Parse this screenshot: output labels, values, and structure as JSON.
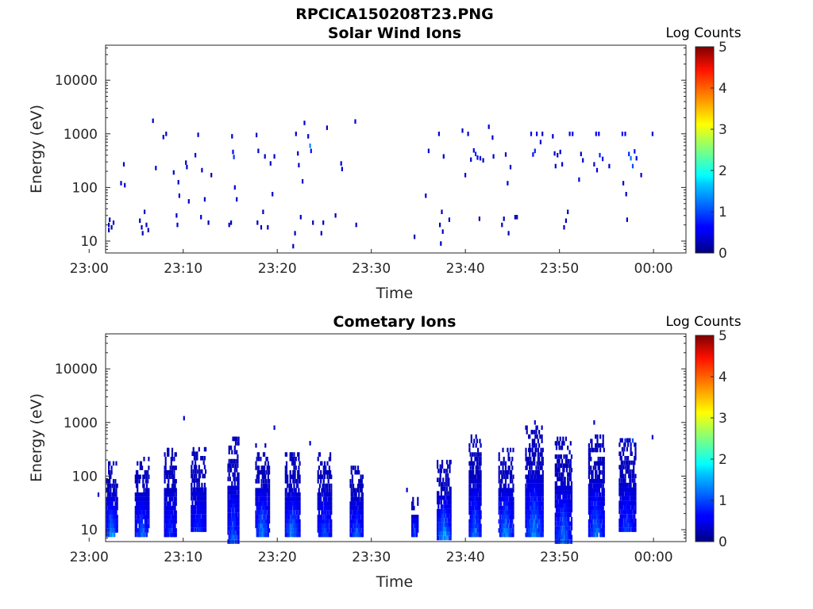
{
  "figure": {
    "title": "RPCICA150208T23.PNG"
  },
  "chart_data": [
    {
      "type": "heatmap",
      "title": "Solar Wind Ions",
      "xlabel": "Time",
      "ylabel": "Energy (eV)",
      "x_ticks": [
        "23:00",
        "23:10",
        "23:20",
        "23:30",
        "23:40",
        "23:50",
        "00:00"
      ],
      "y_ticks": [
        "10",
        "100",
        "1000",
        "10000"
      ],
      "y_scale": "log",
      "ylim": [
        6,
        45000
      ],
      "colorbar": {
        "label": "Log Counts",
        "range": [
          0,
          5
        ],
        "ticks": [
          "0",
          "1",
          "2",
          "3",
          "4",
          "5"
        ],
        "colormap": "jet"
      },
      "cells_unit": "[minutes after 23:00, energy eV, log counts]",
      "cells": [
        [
          2.0,
          20,
          0.3
        ],
        [
          2.0,
          16,
          0.3
        ],
        [
          2.1,
          25,
          0.3
        ],
        [
          2.3,
          18,
          0.3
        ],
        [
          2.5,
          22,
          0.3
        ],
        [
          3.3,
          120,
          0.4
        ],
        [
          3.6,
          270,
          0.4
        ],
        [
          3.7,
          110,
          0.4
        ],
        [
          5.3,
          24,
          0.3
        ],
        [
          5.5,
          18,
          0.3
        ],
        [
          5.6,
          14,
          0.3
        ],
        [
          5.8,
          35,
          0.3
        ],
        [
          6.0,
          20,
          0.3
        ],
        [
          6.2,
          16,
          0.3
        ],
        [
          6.7,
          1750,
          0.4
        ],
        [
          7.0,
          230,
          0.4
        ],
        [
          7.8,
          870,
          0.4
        ],
        [
          8.1,
          1000,
          0.4
        ],
        [
          8.9,
          190,
          0.4
        ],
        [
          9.2,
          30,
          0.4
        ],
        [
          9.3,
          20,
          0.4
        ],
        [
          9.4,
          125,
          0.4
        ],
        [
          9.5,
          70,
          0.4
        ],
        [
          10.2,
          290,
          0.4
        ],
        [
          10.3,
          240,
          0.4
        ],
        [
          10.5,
          55,
          0.4
        ],
        [
          11.2,
          400,
          0.4
        ],
        [
          11.5,
          960,
          0.4
        ],
        [
          11.8,
          28,
          0.4
        ],
        [
          11.9,
          210,
          0.4
        ],
        [
          12.2,
          60,
          0.4
        ],
        [
          12.6,
          22,
          0.3
        ],
        [
          12.9,
          170,
          0.4
        ],
        [
          14.8,
          20,
          0.3
        ],
        [
          15.0,
          22,
          0.3
        ],
        [
          15.1,
          900,
          0.4
        ],
        [
          15.2,
          460,
          0.6
        ],
        [
          15.3,
          370,
          0.9
        ],
        [
          15.4,
          100,
          0.4
        ],
        [
          15.6,
          60,
          0.4
        ],
        [
          17.7,
          950,
          0.4
        ],
        [
          17.8,
          22,
          0.3
        ],
        [
          17.9,
          480,
          0.4
        ],
        [
          18.2,
          18,
          0.3
        ],
        [
          18.4,
          35,
          0.3
        ],
        [
          18.6,
          380,
          0.4
        ],
        [
          18.9,
          18,
          0.3
        ],
        [
          19.2,
          280,
          0.4
        ],
        [
          19.4,
          75,
          0.4
        ],
        [
          19.6,
          380,
          0.4
        ],
        [
          21.6,
          8,
          0.3
        ],
        [
          21.8,
          14,
          0.3
        ],
        [
          21.9,
          1000,
          0.4
        ],
        [
          22.1,
          430,
          0.4
        ],
        [
          22.2,
          260,
          0.4
        ],
        [
          22.4,
          28,
          0.3
        ],
        [
          22.6,
          130,
          0.4
        ],
        [
          22.8,
          1600,
          0.4
        ],
        [
          23.2,
          900,
          0.4
        ],
        [
          23.4,
          600,
          1.3
        ],
        [
          23.5,
          480,
          0.7
        ],
        [
          23.7,
          22,
          0.3
        ],
        [
          24.6,
          14,
          0.3
        ],
        [
          24.8,
          22,
          0.3
        ],
        [
          25.2,
          1300,
          0.4
        ],
        [
          26.1,
          30,
          0.3
        ],
        [
          26.7,
          280,
          0.4
        ],
        [
          26.8,
          220,
          0.4
        ],
        [
          28.2,
          1700,
          0.4
        ],
        [
          28.3,
          20,
          0.3
        ],
        [
          34.5,
          12,
          0.3
        ],
        [
          35.7,
          70,
          0.4
        ],
        [
          36.0,
          480,
          0.4
        ],
        [
          37.1,
          1000,
          0.5
        ],
        [
          37.2,
          20,
          0.3
        ],
        [
          37.3,
          9,
          0.3
        ],
        [
          37.4,
          35,
          0.3
        ],
        [
          37.5,
          15,
          0.3
        ],
        [
          37.6,
          380,
          0.4
        ],
        [
          38.2,
          25,
          0.3
        ],
        [
          39.6,
          1150,
          0.4
        ],
        [
          39.9,
          170,
          0.4
        ],
        [
          40.2,
          1000,
          0.4
        ],
        [
          40.5,
          330,
          0.4
        ],
        [
          40.8,
          490,
          0.6
        ],
        [
          41.0,
          420,
          0.8
        ],
        [
          41.2,
          360,
          0.6
        ],
        [
          41.4,
          26,
          0.3
        ],
        [
          41.5,
          350,
          0.4
        ],
        [
          41.8,
          320,
          0.4
        ],
        [
          42.4,
          1350,
          0.4
        ],
        [
          42.8,
          850,
          0.4
        ],
        [
          42.9,
          380,
          0.4
        ],
        [
          43.8,
          20,
          0.3
        ],
        [
          44.0,
          26,
          0.3
        ],
        [
          44.2,
          410,
          0.4
        ],
        [
          44.4,
          120,
          0.4
        ],
        [
          44.5,
          14,
          0.3
        ],
        [
          44.7,
          240,
          0.4
        ],
        [
          45.2,
          28,
          0.3
        ],
        [
          45.4,
          28,
          0.3
        ],
        [
          46.9,
          1000,
          0.6
        ],
        [
          47.1,
          410,
          0.7
        ],
        [
          47.3,
          480,
          0.8
        ],
        [
          47.5,
          1000,
          0.5
        ],
        [
          47.9,
          700,
          0.4
        ],
        [
          48.1,
          1000,
          0.4
        ],
        [
          49.2,
          900,
          0.4
        ],
        [
          49.4,
          430,
          0.4
        ],
        [
          49.5,
          250,
          0.4
        ],
        [
          49.7,
          400,
          0.4
        ],
        [
          50.0,
          460,
          0.4
        ],
        [
          50.2,
          270,
          0.4
        ],
        [
          50.4,
          18,
          0.3
        ],
        [
          50.6,
          24,
          0.3
        ],
        [
          50.8,
          35,
          0.3
        ],
        [
          51.0,
          1000,
          0.6
        ],
        [
          51.3,
          1000,
          0.5
        ],
        [
          52.0,
          140,
          0.4
        ],
        [
          52.2,
          420,
          0.4
        ],
        [
          52.4,
          320,
          0.4
        ],
        [
          53.8,
          1000,
          0.6
        ],
        [
          54.1,
          1000,
          0.5
        ],
        [
          53.6,
          270,
          0.4
        ],
        [
          53.9,
          210,
          0.5
        ],
        [
          54.2,
          400,
          0.8
        ],
        [
          54.5,
          340,
          0.6
        ],
        [
          55.2,
          250,
          0.4
        ],
        [
          56.6,
          1000,
          0.7
        ],
        [
          56.9,
          1000,
          0.6
        ],
        [
          56.7,
          120,
          0.4
        ],
        [
          57.0,
          75,
          0.4
        ],
        [
          57.1,
          25,
          0.3
        ],
        [
          57.3,
          420,
          0.8
        ],
        [
          57.5,
          350,
          1.2
        ],
        [
          57.7,
          250,
          1.0
        ],
        [
          57.9,
          470,
          0.7
        ],
        [
          58.1,
          350,
          0.5
        ],
        [
          58.6,
          170,
          0.4
        ],
        [
          59.8,
          1000,
          0.4
        ]
      ]
    },
    {
      "type": "heatmap",
      "title": "Cometary Ions",
      "xlabel": "Time",
      "ylabel": "Energy (eV)",
      "x_ticks": [
        "23:00",
        "23:10",
        "23:20",
        "23:30",
        "23:40",
        "23:50",
        "00:00"
      ],
      "y_ticks": [
        "10",
        "100",
        "1000",
        "10000"
      ],
      "y_scale": "log",
      "ylim": [
        6,
        45000
      ],
      "colorbar": {
        "label": "Log Counts",
        "range": [
          0,
          5
        ],
        "ticks": [
          "0",
          "1",
          "2",
          "3",
          "4",
          "5"
        ],
        "colormap": "jet"
      },
      "cells_unit": "[minutes after 23:00, energy eV, log counts]",
      "bursts_unit": "[center minute, width minute, low eV, high eV, peak log counts]",
      "bursts": [
        [
          2.4,
          1.2,
          8,
          170,
          1.6
        ],
        [
          5.6,
          1.5,
          8,
          210,
          1.3
        ],
        [
          8.6,
          1.3,
          8,
          290,
          1.0
        ],
        [
          11.6,
          1.6,
          10,
          290,
          1.0
        ],
        [
          15.3,
          1.2,
          6,
          450,
          1.4
        ],
        [
          18.4,
          1.5,
          8,
          370,
          1.5
        ],
        [
          21.6,
          1.6,
          8,
          250,
          1.5
        ],
        [
          25.0,
          1.5,
          8,
          230,
          1.2
        ],
        [
          28.4,
          1.4,
          8,
          130,
          1.3
        ],
        [
          34.6,
          0.7,
          8,
          40,
          1.3
        ],
        [
          37.7,
          1.5,
          7,
          190,
          1.8
        ],
        [
          41.0,
          1.3,
          8,
          500,
          1.4
        ],
        [
          44.3,
          1.6,
          8,
          320,
          1.6
        ],
        [
          47.3,
          1.9,
          8,
          880,
          1.6
        ],
        [
          50.4,
          1.8,
          6,
          480,
          1.5
        ],
        [
          53.9,
          1.7,
          8,
          560,
          1.4
        ],
        [
          57.2,
          1.8,
          10,
          470,
          1.1
        ]
      ],
      "cells": [
        [
          0.9,
          45,
          0.4
        ],
        [
          10.0,
          1200,
          0.5
        ],
        [
          19.6,
          800,
          0.4
        ],
        [
          23.4,
          410,
          0.4
        ],
        [
          33.7,
          55,
          0.4
        ],
        [
          56.9,
          460,
          0.8
        ],
        [
          57.7,
          460,
          1.0
        ],
        [
          59.8,
          530,
          0.4
        ],
        [
          53.6,
          1000,
          0.4
        ],
        [
          47.3,
          1000,
          0.5
        ]
      ]
    }
  ]
}
